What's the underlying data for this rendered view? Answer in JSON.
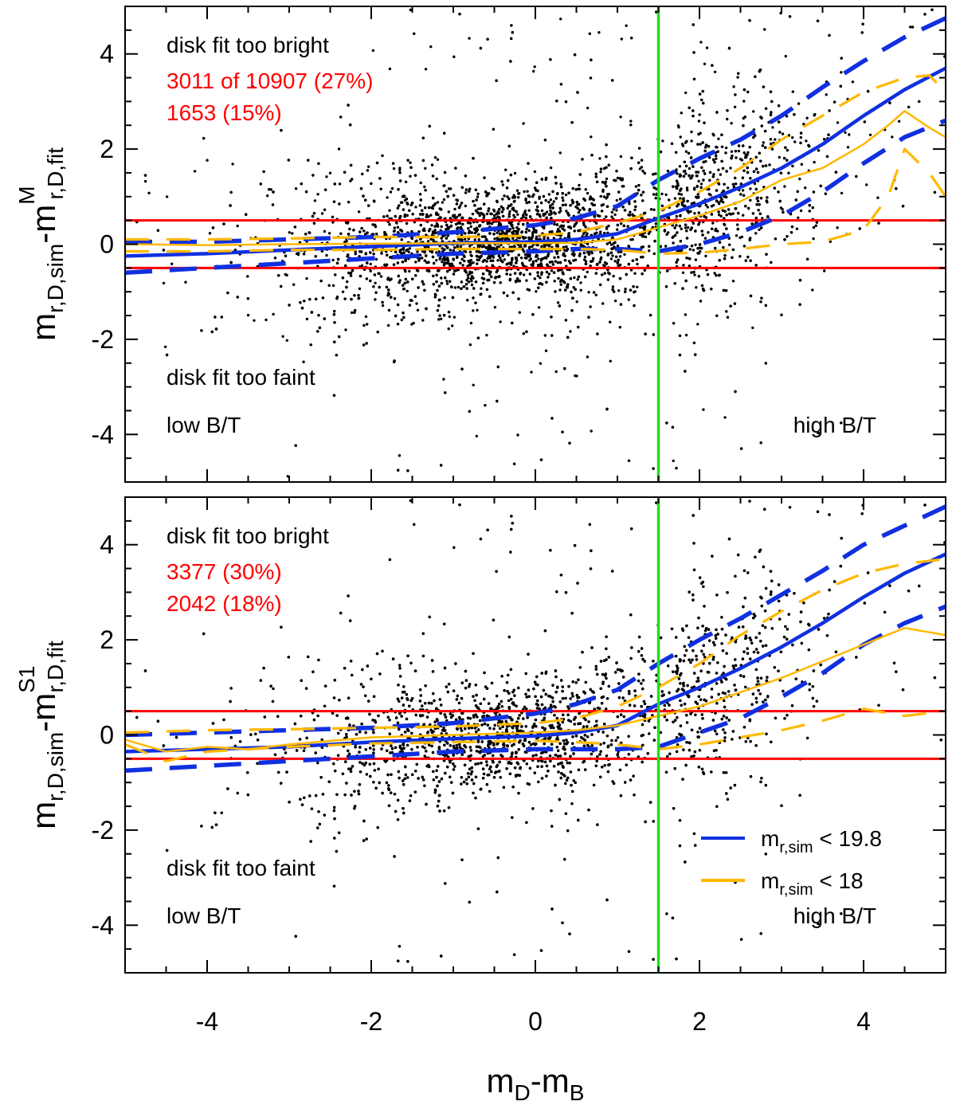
{
  "chart_data": [
    {
      "panel": "top",
      "type": "scatter",
      "title": "",
      "xlim": [
        -5,
        5
      ],
      "ylim": [
        -5,
        5
      ],
      "xticks": [
        -4,
        -2,
        0,
        2,
        4
      ],
      "yticks": [
        -4,
        -2,
        0,
        2,
        4
      ],
      "xlabel": "",
      "ylabel": {
        "main": "m",
        "sub1": "r,D,sim",
        "mid": "-m",
        "sub2": "r,D,fit",
        "sup": "M"
      },
      "grid": false,
      "tick_labels_x": [
        "-4",
        "-2",
        "0",
        "2",
        "4"
      ],
      "tick_labels_y": [
        "-4",
        "-2",
        "0",
        "2",
        "4"
      ],
      "hlines": [
        0.5,
        -0.5
      ],
      "hline_color": "#ff0000",
      "vline": 1.5,
      "vline_color": "#22dd22",
      "point_color": "#000000",
      "annotations": {
        "bright": "disk fit too bright",
        "count_all": "3011 of 10907 (27%)",
        "count_bright": "1653 (15%)",
        "faint": "disk fit too faint",
        "low_bt": "low B/T",
        "high_bt": "high B/T"
      },
      "series": [
        {
          "name": "m_r,sim < 19.8",
          "color": "#1030e0",
          "role": "median",
          "x": [
            -5,
            -4,
            -3,
            -2,
            -1,
            0,
            0.5,
            1,
            1.5,
            2,
            2.5,
            3,
            3.5,
            4,
            4.5,
            5
          ],
          "y": [
            -0.25,
            -0.2,
            -0.12,
            -0.05,
            0.02,
            0.05,
            0.1,
            0.22,
            0.55,
            0.85,
            1.2,
            1.6,
            2.1,
            2.7,
            3.25,
            3.7
          ]
        },
        {
          "name": "m_r,sim < 19.8",
          "color": "#1030e0",
          "role": "upper",
          "x": [
            -5,
            -4,
            -3,
            -2,
            -1,
            0,
            0.5,
            1,
            1.5,
            2,
            2.5,
            3,
            3.5,
            4,
            4.5,
            5
          ],
          "y": [
            0.05,
            0.05,
            0.1,
            0.15,
            0.25,
            0.4,
            0.55,
            0.8,
            1.35,
            1.8,
            2.2,
            2.7,
            3.3,
            3.85,
            4.35,
            4.75
          ]
        },
        {
          "name": "m_r,sim < 19.8",
          "color": "#1030e0",
          "role": "lower",
          "x": [
            -5,
            -4,
            -3,
            -2,
            -1,
            0,
            0.5,
            1,
            1.5,
            2,
            2.5,
            3,
            3.5,
            4,
            4.5,
            5
          ],
          "y": [
            -0.6,
            -0.5,
            -0.4,
            -0.3,
            -0.2,
            -0.15,
            -0.1,
            -0.1,
            -0.15,
            0.0,
            0.25,
            0.6,
            1.1,
            1.7,
            2.25,
            2.6
          ]
        },
        {
          "name": "m_r,sim < 18",
          "color": "#ffb800",
          "role": "median",
          "x": [
            -5,
            -4,
            -3,
            -2,
            -1,
            0,
            0.5,
            1,
            1.5,
            2,
            2.5,
            3,
            3.5,
            4,
            4.3,
            4.5,
            4.8,
            5
          ],
          "y": [
            0.0,
            -0.02,
            0.0,
            0.01,
            0.02,
            0.02,
            0.03,
            0.1,
            0.35,
            0.6,
            0.9,
            1.35,
            1.6,
            2.1,
            2.5,
            2.8,
            2.45,
            2.25
          ]
        },
        {
          "name": "m_r,sim < 18",
          "color": "#ffb800",
          "role": "upper",
          "x": [
            -5,
            -4,
            -3,
            -2,
            -1,
            0,
            0.5,
            1,
            1.5,
            2,
            2.5,
            3,
            3.5,
            4,
            4.5,
            4.8,
            5
          ],
          "y": [
            0.1,
            0.1,
            0.12,
            0.15,
            0.15,
            0.18,
            0.25,
            0.45,
            0.7,
            1.1,
            1.6,
            2.2,
            2.7,
            3.2,
            3.5,
            3.55,
            3.2
          ]
        },
        {
          "name": "m_r,sim < 18",
          "color": "#ffb800",
          "role": "lower",
          "x": [
            -5,
            -4,
            -3,
            -2,
            -1,
            0,
            0.5,
            1,
            1.5,
            2,
            2.5,
            3,
            3.5,
            4,
            4.3,
            4.5,
            4.8,
            5
          ],
          "y": [
            -0.15,
            -0.15,
            -0.12,
            -0.12,
            -0.1,
            -0.1,
            -0.1,
            -0.12,
            -0.2,
            -0.18,
            -0.1,
            0.0,
            0.05,
            0.3,
            1.0,
            2.0,
            1.5,
            1.0
          ]
        }
      ]
    },
    {
      "panel": "bottom",
      "type": "scatter",
      "title": "",
      "xlim": [
        -5,
        5
      ],
      "ylim": [
        -5,
        5
      ],
      "xticks": [
        -4,
        -2,
        0,
        2,
        4
      ],
      "yticks": [
        -4,
        -2,
        0,
        2,
        4
      ],
      "xlabel": {
        "main": "m",
        "sub1": "D",
        "mid": "-m",
        "sub2": "B"
      },
      "ylabel": {
        "main": "m",
        "sub1": "r,D,sim",
        "mid": "-m",
        "sub2": "r,D,fit",
        "sup": "S1"
      },
      "grid": false,
      "tick_labels_x": [
        "-4",
        "-2",
        "0",
        "2",
        "4"
      ],
      "tick_labels_y": [
        "-4",
        "-2",
        "0",
        "2",
        "4"
      ],
      "hlines": [
        0.5,
        -0.5
      ],
      "hline_color": "#ff0000",
      "vline": 1.5,
      "vline_color": "#22dd22",
      "point_color": "#000000",
      "annotations": {
        "bright": "disk fit too bright",
        "count_all": "3377 (30%)",
        "count_bright": "2042 (18%)",
        "faint": "disk fit too faint",
        "low_bt": "low B/T",
        "high_bt": "high B/T"
      },
      "legend": {
        "position": "bottom-right",
        "entries": [
          {
            "color": "#1030e0",
            "main": "m",
            "sub": "r,sim",
            "text": " < 19.8"
          },
          {
            "color": "#ffb800",
            "main": "m",
            "sub": "r,sim",
            "text": " < 18"
          }
        ]
      },
      "series": [
        {
          "name": "m_r,sim < 19.8",
          "color": "#1030e0",
          "role": "median",
          "x": [
            -5,
            -4,
            -3,
            -2,
            -1,
            0,
            0.5,
            1,
            1.5,
            2,
            2.5,
            3,
            3.5,
            4,
            4.5,
            5
          ],
          "y": [
            -0.35,
            -0.3,
            -0.25,
            -0.15,
            -0.08,
            -0.02,
            0.05,
            0.2,
            0.65,
            1.0,
            1.4,
            1.85,
            2.35,
            2.9,
            3.4,
            3.8
          ]
        },
        {
          "name": "m_r,sim < 19.8",
          "color": "#1030e0",
          "role": "upper",
          "x": [
            -5,
            -4,
            -3,
            -2,
            -1,
            0,
            0.5,
            1,
            1.5,
            2,
            2.5,
            3,
            3.5,
            4,
            4.5,
            5
          ],
          "y": [
            0.0,
            0.05,
            0.1,
            0.15,
            0.25,
            0.45,
            0.65,
            0.95,
            1.5,
            2.0,
            2.45,
            2.95,
            3.45,
            4.0,
            4.4,
            4.8
          ]
        },
        {
          "name": "m_r,sim < 19.8",
          "color": "#1030e0",
          "role": "lower",
          "x": [
            -5,
            -4,
            -3,
            -2,
            -1,
            0,
            0.5,
            1,
            1.5,
            2,
            2.5,
            3,
            3.5,
            4,
            4.5,
            5
          ],
          "y": [
            -0.75,
            -0.65,
            -0.55,
            -0.45,
            -0.35,
            -0.3,
            -0.3,
            -0.3,
            -0.25,
            0.05,
            0.35,
            0.8,
            1.3,
            1.9,
            2.35,
            2.7
          ]
        },
        {
          "name": "m_r,sim < 18",
          "color": "#ffb800",
          "role": "median",
          "x": [
            -5,
            -4.5,
            -4,
            -3.5,
            -3,
            -2,
            -1,
            0,
            0.5,
            1,
            1.5,
            2,
            2.5,
            3,
            3.5,
            4,
            4.5,
            5
          ],
          "y": [
            -0.1,
            -0.35,
            -0.25,
            -0.3,
            -0.2,
            -0.05,
            0.0,
            0.05,
            0.1,
            0.2,
            0.4,
            0.6,
            0.9,
            1.2,
            1.55,
            1.9,
            2.25,
            2.1
          ]
        },
        {
          "name": "m_r,sim < 18",
          "color": "#ffb800",
          "role": "upper",
          "x": [
            -5,
            -4,
            -3,
            -2,
            -1,
            0,
            0.5,
            1,
            1.5,
            2,
            2.5,
            3,
            3.5,
            4,
            4.5,
            5
          ],
          "y": [
            0.05,
            0.1,
            0.12,
            0.15,
            0.18,
            0.25,
            0.35,
            0.6,
            1.0,
            1.5,
            2.1,
            2.6,
            3.05,
            3.4,
            3.6,
            3.7
          ]
        },
        {
          "name": "m_r,sim < 18",
          "color": "#ffb800",
          "role": "lower",
          "x": [
            -5,
            -4.5,
            -4,
            -3,
            -2,
            -1,
            0,
            0.5,
            1,
            1.5,
            2,
            2.5,
            3,
            3.5,
            4,
            4.5,
            5
          ],
          "y": [
            -0.2,
            -0.55,
            -0.35,
            -0.25,
            -0.18,
            -0.15,
            -0.12,
            -0.15,
            -0.2,
            -0.3,
            -0.2,
            -0.05,
            0.1,
            0.3,
            0.55,
            0.4,
            0.5
          ]
        }
      ]
    }
  ]
}
